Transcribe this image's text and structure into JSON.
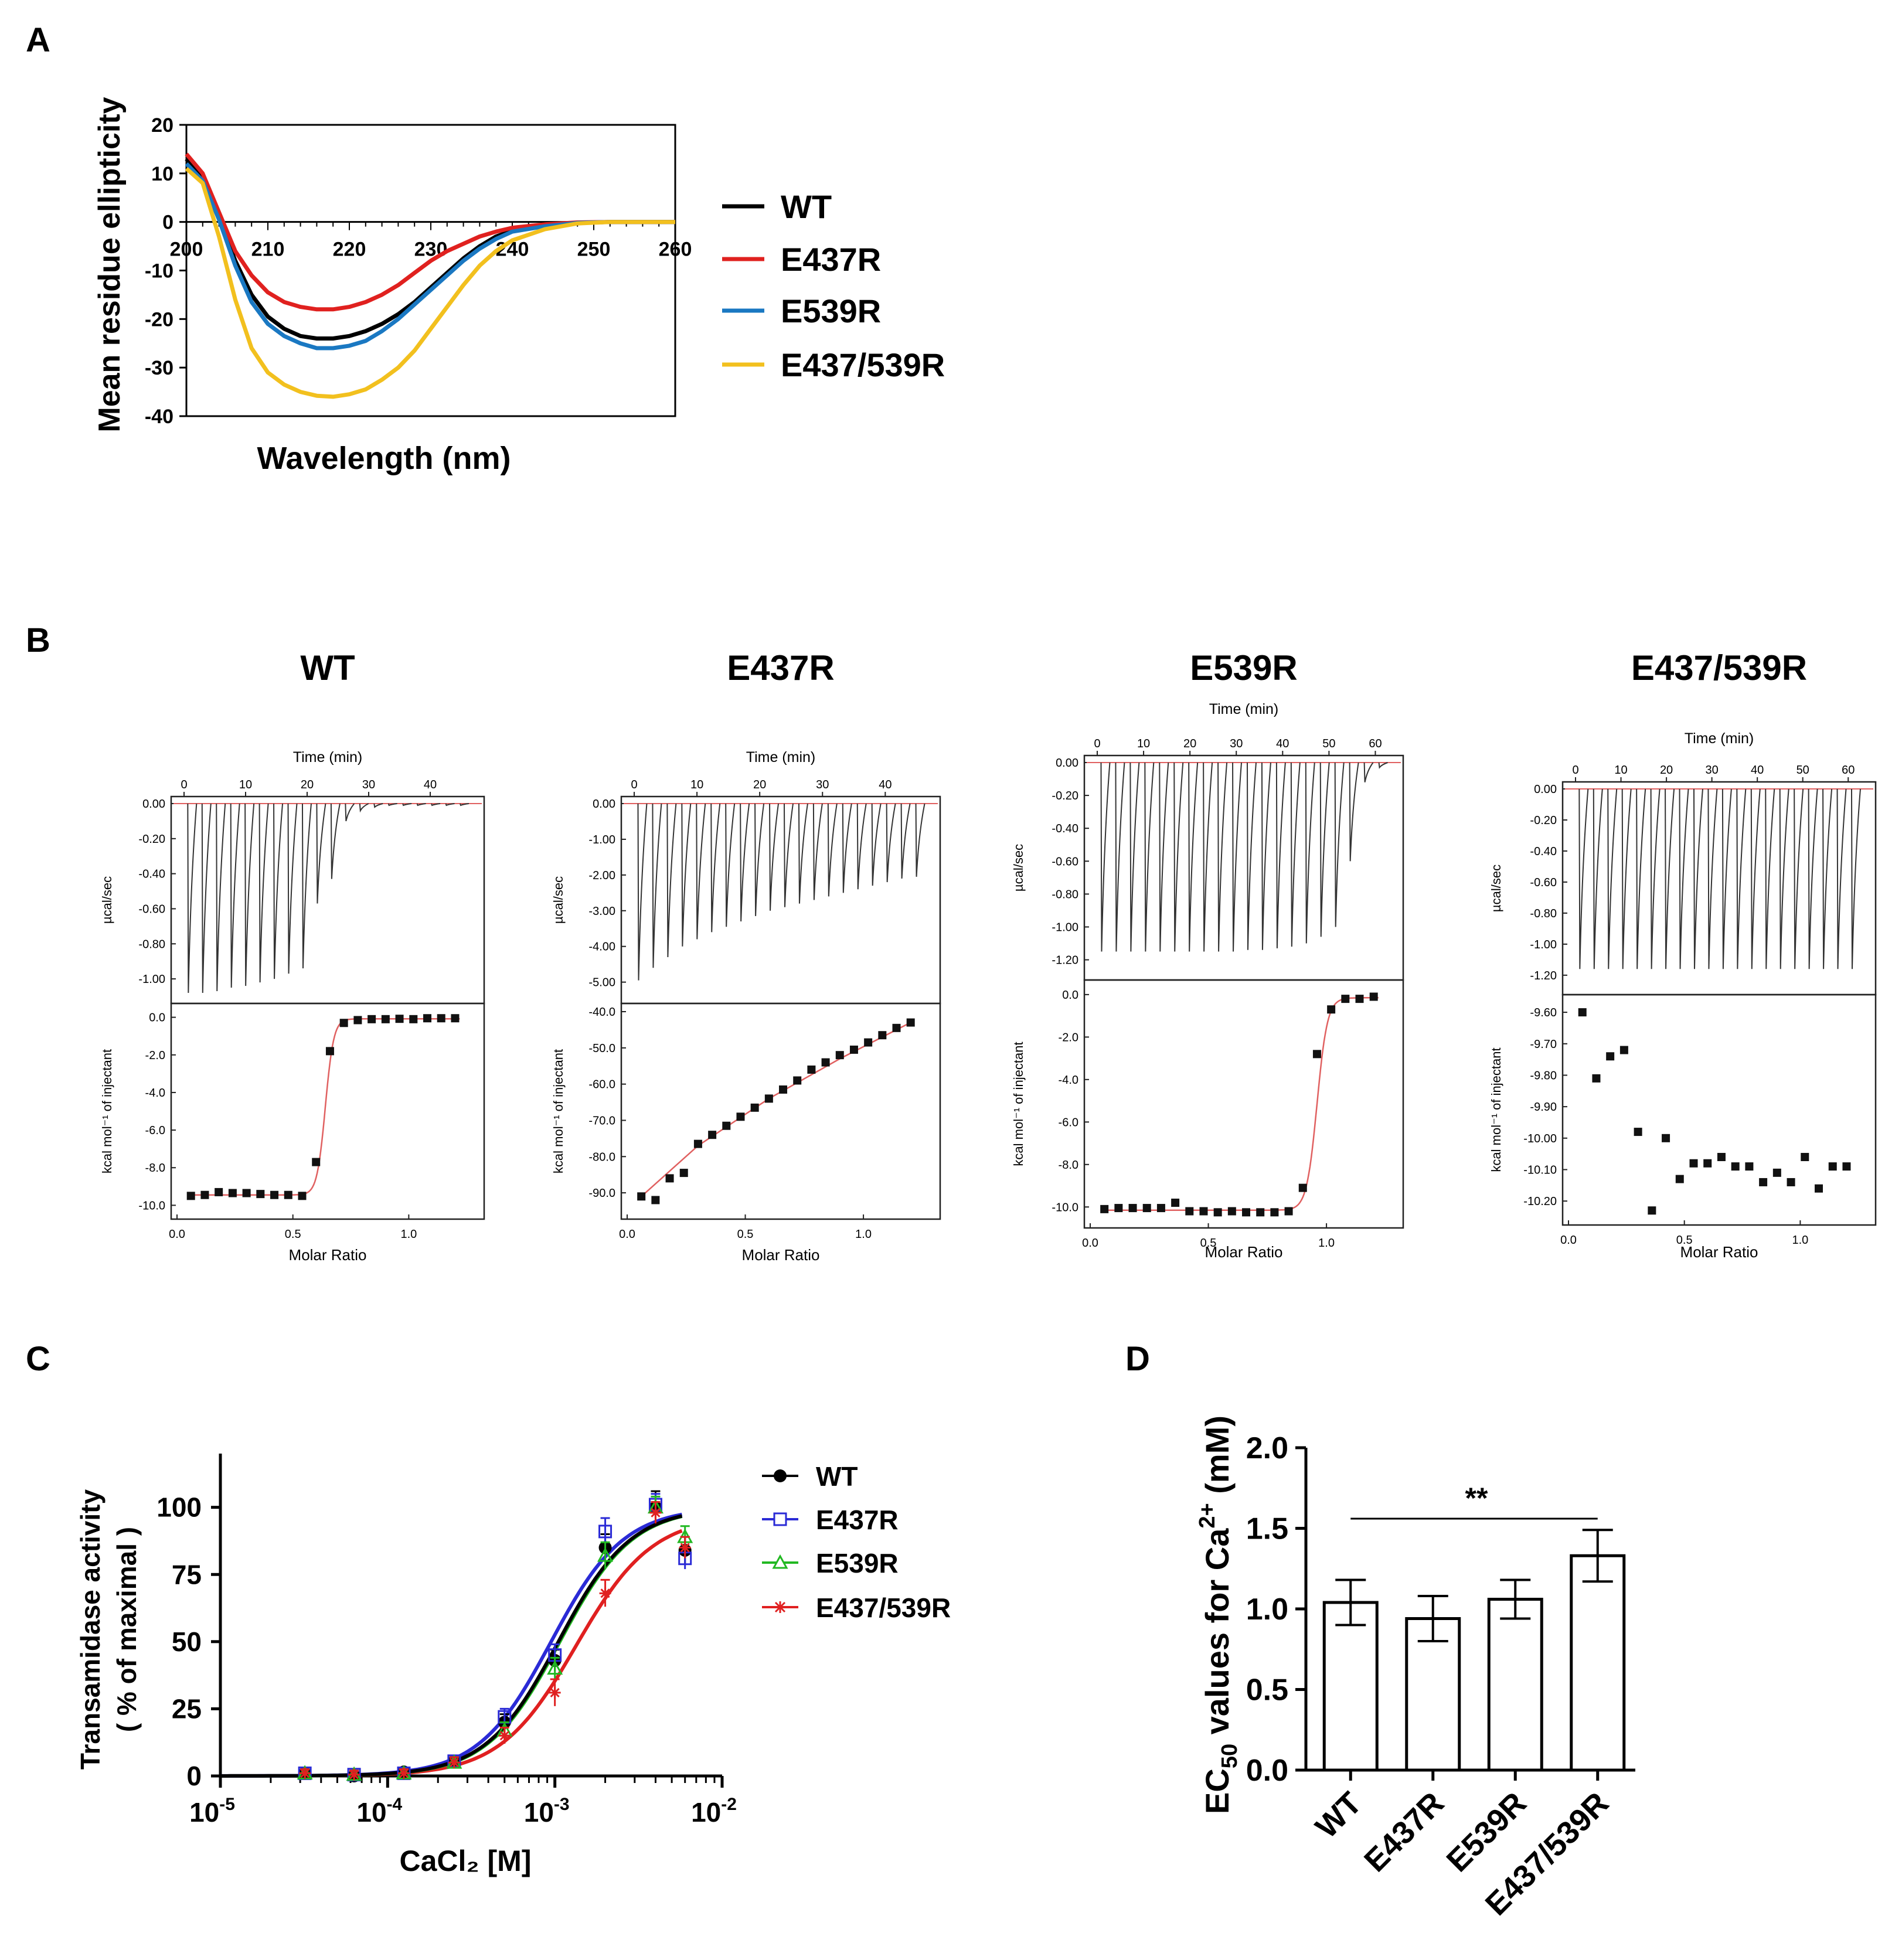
{
  "panels": {
    "A": {
      "label": "A"
    },
    "B": {
      "label": "B"
    },
    "C": {
      "label": "C"
    },
    "D": {
      "label": "D"
    }
  },
  "colors": {
    "WT": "#000000",
    "E437R": "#e0211f",
    "E539R": "#1a78c2",
    "E437_539R": "#f2c01e",
    "blue": "#2a2ad6",
    "green": "#21b821",
    "red": "#e02020",
    "fit": "#e06060"
  },
  "chart_data": [
    {
      "id": "A",
      "type": "line",
      "title": "",
      "xlabel": "Wavelength (nm)",
      "ylabel": "Mean residue ellipticity",
      "xlim": [
        200,
        260
      ],
      "ylim": [
        -40,
        20
      ],
      "xticks": [
        200,
        210,
        220,
        230,
        240,
        250,
        260
      ],
      "yticks": [
        20,
        10,
        0,
        -10,
        -20,
        -30,
        -40
      ],
      "series": [
        {
          "name": "WT",
          "color": "#000000",
          "x": [
            200,
            202,
            204,
            206,
            208,
            210,
            212,
            214,
            216,
            218,
            220,
            222,
            224,
            226,
            228,
            230,
            232,
            234,
            236,
            238,
            240,
            244,
            248,
            252,
            256,
            260
          ],
          "y": [
            13,
            9,
            1,
            -8,
            -15,
            -19.5,
            -22,
            -23.5,
            -24,
            -24,
            -23.5,
            -22.5,
            -21,
            -19,
            -16.5,
            -13.5,
            -10.5,
            -7.5,
            -5,
            -3,
            -1.8,
            -0.8,
            -0.2,
            0,
            0,
            0
          ]
        },
        {
          "name": "E437R",
          "color": "#e0211f",
          "x": [
            200,
            202,
            204,
            206,
            208,
            210,
            212,
            214,
            216,
            218,
            220,
            222,
            224,
            226,
            228,
            230,
            232,
            234,
            236,
            238,
            240,
            244,
            248,
            252,
            256,
            260
          ],
          "y": [
            14,
            10,
            2,
            -6,
            -11,
            -14.5,
            -16.5,
            -17.5,
            -18,
            -18,
            -17.5,
            -16.5,
            -15,
            -13,
            -10.5,
            -8,
            -6,
            -4.5,
            -3,
            -2,
            -1.2,
            -0.5,
            -0.1,
            0,
            0,
            0
          ]
        },
        {
          "name": "E539R",
          "color": "#1a78c2",
          "x": [
            200,
            202,
            204,
            206,
            208,
            210,
            212,
            214,
            216,
            218,
            220,
            222,
            224,
            226,
            228,
            230,
            232,
            234,
            236,
            238,
            240,
            244,
            248,
            252,
            256,
            260
          ],
          "y": [
            12,
            8.5,
            0.5,
            -9,
            -16.5,
            -21,
            -23.5,
            -25,
            -26,
            -26,
            -25.5,
            -24.5,
            -22.5,
            -20,
            -17,
            -14,
            -11,
            -8,
            -5.5,
            -3.5,
            -2,
            -0.9,
            -0.2,
            0,
            0,
            0
          ]
        },
        {
          "name": "E437/539R",
          "color": "#f2c01e",
          "x": [
            200,
            202,
            204,
            206,
            208,
            210,
            212,
            214,
            216,
            218,
            220,
            222,
            224,
            226,
            228,
            230,
            232,
            234,
            236,
            238,
            240,
            244,
            248,
            252,
            256,
            260
          ],
          "y": [
            11,
            8,
            -3,
            -16,
            -26,
            -31,
            -33.5,
            -35,
            -35.8,
            -36,
            -35.5,
            -34.5,
            -32.5,
            -30,
            -26.5,
            -22,
            -17.5,
            -13,
            -9,
            -6,
            -3.8,
            -1.5,
            -0.3,
            0,
            0,
            0
          ]
        }
      ],
      "legend": [
        "WT",
        "E437R",
        "E539R",
        "E437/539R"
      ]
    },
    {
      "id": "B",
      "type": "scatter",
      "subplots": [
        {
          "title": "WT",
          "time_label": "Time (min)",
          "time_ticks": [
            0,
            10,
            20,
            30,
            40
          ],
          "time_max": 48,
          "power_label": "µcal/sec",
          "power_ticks": [
            "0.00",
            "-0.20",
            "-0.40",
            "-0.60",
            "-0.80",
            "-1.00"
          ],
          "power_range": [
            -1.1,
            0.05
          ],
          "peaks": [
            -1.08,
            -1.08,
            -1.07,
            -1.05,
            -1.04,
            -1.02,
            -1.0,
            -0.97,
            -0.94,
            -0.57,
            -0.43,
            -0.1,
            -0.04,
            -0.02,
            -0.01,
            -0.01,
            -0.01,
            -0.01,
            -0.01,
            -0.01
          ],
          "enthalpy_label": "kcal mol⁻¹ of injectant",
          "enthalpy_ticks": [
            "0.0",
            "-2.0",
            "-4.0",
            "-6.0",
            "-8.0",
            "-10.0"
          ],
          "enthalpy_range": [
            -10.3,
            0.3
          ],
          "x_label": "Molar Ratio",
          "x_ticks": [
            "0.0",
            "0.5",
            "1.0"
          ],
          "x_range": [
            0,
            1.3
          ],
          "points_x": [
            0.06,
            0.12,
            0.18,
            0.24,
            0.3,
            0.36,
            0.42,
            0.48,
            0.54,
            0.6,
            0.66,
            0.72,
            0.78,
            0.84,
            0.9,
            0.96,
            1.02,
            1.08,
            1.14,
            1.2
          ],
          "points_y": [
            -9.5,
            -9.45,
            -9.3,
            -9.35,
            -9.35,
            -9.4,
            -9.45,
            -9.45,
            -9.5,
            -7.7,
            -1.8,
            -0.3,
            -0.15,
            -0.1,
            -0.1,
            -0.08,
            -0.1,
            -0.05,
            -0.05,
            -0.05
          ],
          "fit": {
            "kind": "sigmoid",
            "low": -9.45,
            "high": -0.08,
            "mid": 0.64,
            "width": 0.018
          }
        },
        {
          "title": "E437R",
          "time_label": "Time (min)",
          "time_ticks": [
            0,
            10,
            20,
            30,
            40
          ],
          "time_max": 48,
          "power_label": "µcal/sec",
          "power_ticks": [
            "0.00",
            "-1.00",
            "-2.00",
            "-3.00",
            "-4.00",
            "-5.00"
          ],
          "power_range": [
            -5.4,
            0.3
          ],
          "peaks": [
            -4.95,
            -4.6,
            -4.3,
            -4.0,
            -3.8,
            -3.6,
            -3.45,
            -3.3,
            -3.15,
            -3.0,
            -2.9,
            -2.8,
            -2.7,
            -2.6,
            -2.5,
            -2.4,
            -2.3,
            -2.2,
            -2.1,
            -2.05
          ],
          "enthalpy_label": "kcal mol⁻¹ of injectant",
          "enthalpy_ticks": [
            "-40.0",
            "-50.0",
            "-60.0",
            "-70.0",
            "-80.0",
            "-90.0"
          ],
          "enthalpy_range": [
            -95,
            -40
          ],
          "x_label": "Molar Ratio",
          "x_ticks": [
            "0.0",
            "0.5",
            "1.0"
          ],
          "x_range": [
            0,
            1.3
          ],
          "points_x": [
            0.06,
            0.12,
            0.18,
            0.24,
            0.3,
            0.36,
            0.42,
            0.48,
            0.54,
            0.6,
            0.66,
            0.72,
            0.78,
            0.84,
            0.9,
            0.96,
            1.02,
            1.08,
            1.14,
            1.2
          ],
          "points_y": [
            -91,
            -92,
            -86,
            -84.5,
            -76.5,
            -74,
            -71.5,
            -69,
            -66.5,
            -64,
            -61.5,
            -59,
            -56,
            -54,
            -52,
            -50.5,
            -48.5,
            -46.5,
            -44.5,
            -43
          ],
          "fit": {
            "kind": "points",
            "x": [
              0.06,
              0.3,
              0.6,
              0.9,
              1.2
            ],
            "y": [
              -91,
              -77,
              -64,
              -53,
              -43
            ]
          }
        },
        {
          "title": "E539R",
          "time_label": "Time (min)",
          "time_ticks": [
            0,
            10,
            20,
            30,
            40,
            50,
            60
          ],
          "time_max": 65,
          "power_label": "µcal/sec",
          "power_ticks": [
            "0.00",
            "-0.20",
            "-0.40",
            "-0.60",
            "-0.80",
            "-1.00",
            "-1.20"
          ],
          "power_range": [
            -1.28,
            0.05
          ],
          "peaks": [
            -1.15,
            -1.15,
            -1.15,
            -1.15,
            -1.15,
            -1.15,
            -1.15,
            -1.15,
            -1.15,
            -1.15,
            -1.14,
            -1.14,
            -1.13,
            -1.12,
            -1.1,
            -1.06,
            -1.0,
            -0.6,
            -0.12,
            -0.03
          ],
          "enthalpy_label": "kcal mol⁻¹ of injectant",
          "enthalpy_ticks": [
            "0.0",
            "-2.0",
            "-4.0",
            "-6.0",
            "-8.0",
            "-10.0"
          ],
          "enthalpy_range": [
            -10.6,
            0.3
          ],
          "x_label": "Molar Ratio",
          "x_ticks": [
            "0.0",
            "0.5",
            "1.0"
          ],
          "x_range": [
            0,
            1.3
          ],
          "points_x": [
            0.06,
            0.12,
            0.18,
            0.24,
            0.3,
            0.36,
            0.42,
            0.48,
            0.54,
            0.6,
            0.66,
            0.72,
            0.78,
            0.84,
            0.9,
            0.96,
            1.02,
            1.08,
            1.14,
            1.2
          ],
          "points_y": [
            -10.1,
            -10.05,
            -10.05,
            -10.05,
            -10.05,
            -9.8,
            -10.2,
            -10.2,
            -10.25,
            -10.2,
            -10.25,
            -10.25,
            -10.25,
            -10.2,
            -9.1,
            -2.8,
            -0.7,
            -0.2,
            -0.2,
            -0.1
          ],
          "fit": {
            "kind": "sigmoid",
            "low": -10.15,
            "high": -0.15,
            "mid": 0.96,
            "width": 0.022
          }
        },
        {
          "title": "E437/539R",
          "time_label": "Time (min)",
          "time_ticks": [
            0,
            10,
            20,
            30,
            40,
            50,
            60
          ],
          "time_max": 65,
          "power_label": "µcal/sec",
          "power_ticks": [
            "0.00",
            "-0.20",
            "-0.40",
            "-0.60",
            "-0.80",
            "-1.00",
            "-1.20"
          ],
          "power_range": [
            -1.28,
            0.05
          ],
          "peaks": [
            -1.16,
            -1.16,
            -1.16,
            -1.16,
            -1.16,
            -1.16,
            -1.16,
            -1.16,
            -1.16,
            -1.16,
            -1.16,
            -1.16,
            -1.16,
            -1.16,
            -1.16,
            -1.16,
            -1.16,
            -1.16,
            -1.16,
            -1.16
          ],
          "enthalpy_label": "kcal mol⁻¹ of injectant",
          "enthalpy_ticks": [
            "-9.60",
            "-9.70",
            "-9.80",
            "-9.90",
            "-10.00",
            "-10.10",
            "-10.20"
          ],
          "enthalpy_range": [
            -10.25,
            -9.57
          ],
          "x_label": "Molar Ratio",
          "x_ticks": [
            "0.0",
            "0.5",
            "1.0"
          ],
          "x_range": [
            0,
            1.3
          ],
          "points_x": [
            0.06,
            0.12,
            0.18,
            0.24,
            0.3,
            0.36,
            0.42,
            0.48,
            0.54,
            0.6,
            0.66,
            0.72,
            0.78,
            0.84,
            0.9,
            0.96,
            1.02,
            1.08,
            1.14,
            1.2
          ],
          "points_y": [
            -9.6,
            -9.81,
            -9.74,
            -9.72,
            -9.98,
            -10.23,
            -10.0,
            -10.13,
            -10.08,
            -10.08,
            -10.06,
            -10.09,
            -10.09,
            -10.14,
            -10.11,
            -10.14,
            -10.06,
            -10.16,
            -10.09,
            -10.09
          ],
          "fit": null
        }
      ]
    },
    {
      "id": "C",
      "type": "scatter",
      "xlabel": "CaCl₂ [M]",
      "ylabel": "Transamidase activity",
      "ylabel2": "( % of maximal )",
      "xscale": "log",
      "xlim": [
        1e-05,
        0.01
      ],
      "ylim": [
        0,
        120
      ],
      "xticks": [
        {
          "base": "10",
          "exp": "-5"
        },
        {
          "base": "10",
          "exp": "-4"
        },
        {
          "base": "10",
          "exp": "-3"
        },
        {
          "base": "10",
          "exp": "-2"
        }
      ],
      "yticks": [
        0,
        25,
        50,
        75,
        100
      ],
      "x": [
        3.2e-05,
        6.3e-05,
        0.000125,
        0.00025,
        0.0005,
        0.001,
        0.002,
        0.004,
        0.006
      ],
      "series": [
        {
          "name": "WT",
          "marker": "circle",
          "color": "#000000",
          "y": [
            1,
            0,
            1.5,
            5.5,
            20,
            43,
            85,
            100,
            84
          ],
          "err": [
            1.5,
            1.5,
            1.5,
            2,
            3,
            4,
            5,
            6,
            5
          ],
          "ec50": 0.00105,
          "hill": 2.0,
          "top": 100
        },
        {
          "name": "E437R",
          "marker": "square-open",
          "color": "#2a2ad6",
          "y": [
            1,
            0.5,
            1,
            5.5,
            22,
            45,
            91,
            101,
            81
          ],
          "err": [
            1.5,
            1.5,
            1.5,
            2,
            3,
            4,
            5,
            4,
            4
          ],
          "ec50": 0.00095,
          "hill": 2.0,
          "top": 100
        },
        {
          "name": "E539R",
          "marker": "triangle-open",
          "color": "#21b821",
          "y": [
            1,
            0.5,
            1,
            5,
            17,
            40,
            82,
            100,
            89
          ],
          "err": [
            1.5,
            1.5,
            1.5,
            2,
            3,
            4,
            5,
            4,
            4
          ],
          "ec50": 0.00107,
          "hill": 2.0,
          "top": 100
        },
        {
          "name": "E437/539R",
          "marker": "star",
          "color": "#e02020",
          "y": [
            1,
            0.5,
            1,
            5,
            15,
            31,
            68,
            98,
            85
          ],
          "err": [
            1.5,
            1.5,
            1.5,
            2,
            3,
            5,
            5,
            4,
            4
          ],
          "ec50": 0.00134,
          "hill": 1.9,
          "top": 97
        }
      ]
    },
    {
      "id": "D",
      "type": "bar",
      "ylabel_prefix": "EC",
      "ylabel_sub": "50",
      "ylabel_mid": " values for Ca",
      "ylabel_sup": "2+",
      "ylabel_suffix": " (mM)",
      "categories": [
        "WT",
        "E437R",
        "E539R",
        "E437/539R"
      ],
      "values": [
        1.04,
        0.94,
        1.06,
        1.33
      ],
      "errors": [
        0.14,
        0.14,
        0.12,
        0.16
      ],
      "ylim": [
        0,
        2.0
      ],
      "yticks": [
        "0.0",
        "0.5",
        "1.0",
        "1.5",
        "2.0"
      ],
      "significance": {
        "label": "**",
        "from": "WT",
        "to": "E437/539R"
      }
    }
  ]
}
